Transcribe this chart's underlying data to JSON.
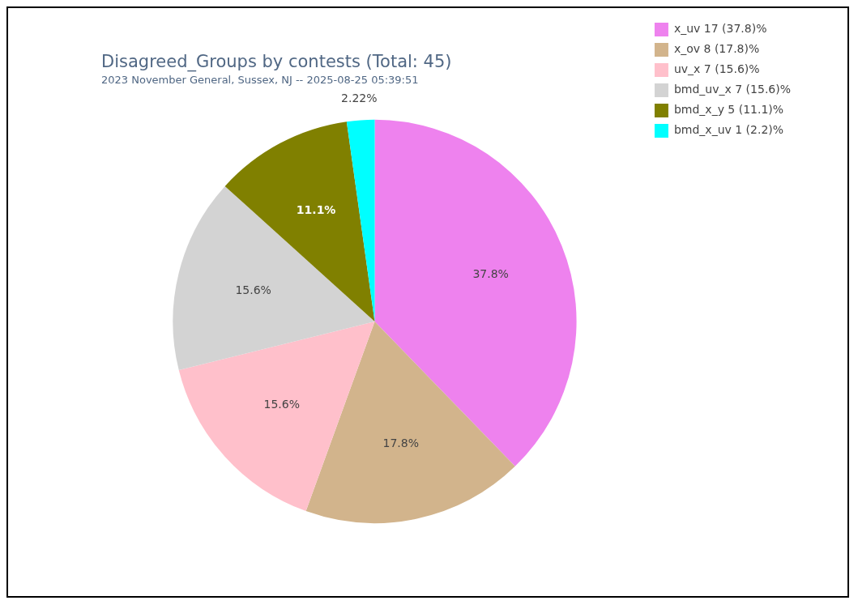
{
  "chart_data": {
    "type": "pie",
    "title": "Disagreed_Groups by contests (Total: 45)",
    "subtitle": "2023 November General, Sussex, NJ -- 2025-08-25 05:39:51",
    "categories": [
      "x_uv 17 (37.8)%",
      "x_ov 8 (17.8)%",
      "uv_x 7 (15.6)%",
      "bmd_uv_x 7 (15.6)%",
      "bmd_x_y 5 (11.1)%",
      "bmd_x_uv 1 (2.2)%"
    ],
    "values": [
      37.8,
      17.8,
      15.6,
      15.6,
      11.1,
      2.22
    ],
    "value_labels": [
      "37.8%",
      "17.8%",
      "15.6%",
      "15.6%",
      "11.1%",
      "2.22%"
    ],
    "colors": [
      "#ee82ee",
      "#d2b48c",
      "#ffc0cb",
      "#d3d3d3",
      "#808000",
      "#00ffff"
    ],
    "legend": "top right"
  }
}
